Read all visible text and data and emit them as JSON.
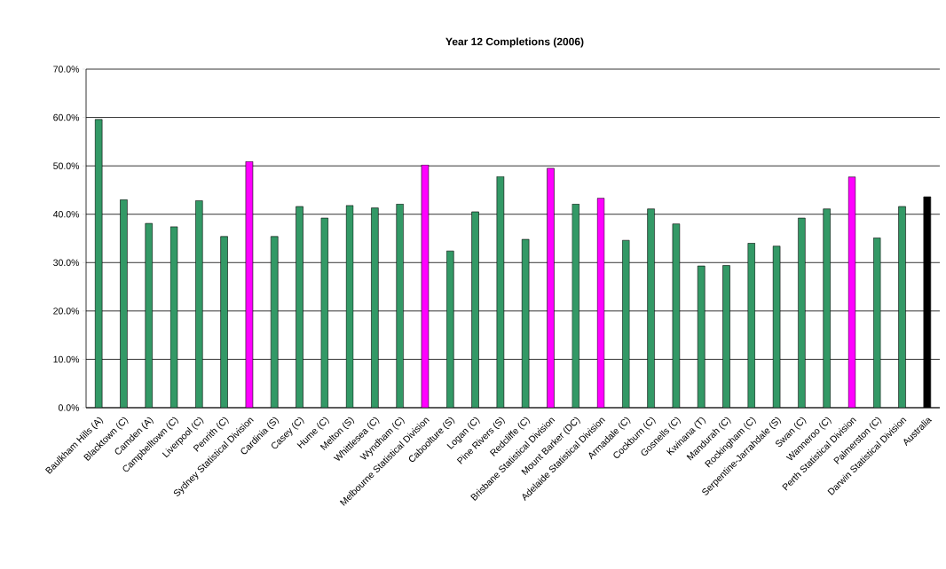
{
  "chart_data": {
    "type": "bar",
    "title": "Year 12 Completions (2006)",
    "categories": [
      "Baulkham Hills (A)",
      "Blacktown (C)",
      "Camden (A)",
      "Campbelltown (C)",
      "Liverpool (C)",
      "Penrith (C)",
      "Sydney Statistical Division",
      "Cardinia (S)",
      "Casey (C)",
      "Hume (C)",
      "Melton (S)",
      "Whittlesea (C)",
      "Wyndham (C)",
      "Melbourne Statistical Division",
      "Caboolture (S)",
      "Logan (C)",
      "Pine Rivers (S)",
      "Redcliffe (C)",
      "Brisbane Statistical Division",
      "Mount Barker (DC)",
      "Adelaide Statistical Division",
      "Armadale (C)",
      "Cockburn (C)",
      "Gosnells (C)",
      "Kwinana (T)",
      "Mandurah (C)",
      "Rockingham (C)",
      "Serpentine-Jarrahdale (S)",
      "Swan (C)",
      "Wanneroo (C)",
      "Perth Statistical Division",
      "Palmerston (C)",
      "Darwin Statistical Division",
      "Australia"
    ],
    "values": [
      59.6,
      43.0,
      38.1,
      37.4,
      42.8,
      35.4,
      50.9,
      35.4,
      41.6,
      39.2,
      41.8,
      41.3,
      42.1,
      50.2,
      32.4,
      40.5,
      47.8,
      34.8,
      49.5,
      42.1,
      43.3,
      34.6,
      41.1,
      38.0,
      29.3,
      29.4,
      34.0,
      33.4,
      39.2,
      41.1,
      47.7,
      35.1,
      41.6,
      43.6
    ],
    "colors": [
      "#339966",
      "#339966",
      "#339966",
      "#339966",
      "#339966",
      "#339966",
      "#ff00ff",
      "#339966",
      "#339966",
      "#339966",
      "#339966",
      "#339966",
      "#339966",
      "#ff00ff",
      "#339966",
      "#339966",
      "#339966",
      "#339966",
      "#ff00ff",
      "#339966",
      "#ff00ff",
      "#339966",
      "#339966",
      "#339966",
      "#339966",
      "#339966",
      "#339966",
      "#339966",
      "#339966",
      "#339966",
      "#ff00ff",
      "#339966",
      "#339966",
      "#000000"
    ],
    "ylim": [
      0,
      70
    ],
    "yticks": [
      {
        "value": 0,
        "label": "0.0%"
      },
      {
        "value": 10,
        "label": "10.0%"
      },
      {
        "value": 20,
        "label": "20.0%"
      },
      {
        "value": 30,
        "label": "30.0%"
      },
      {
        "value": 40,
        "label": "40.0%"
      },
      {
        "value": 50,
        "label": "50.0%"
      },
      {
        "value": 60,
        "label": "60.0%"
      },
      {
        "value": 70,
        "label": "70.0%"
      }
    ],
    "grid": "y"
  }
}
